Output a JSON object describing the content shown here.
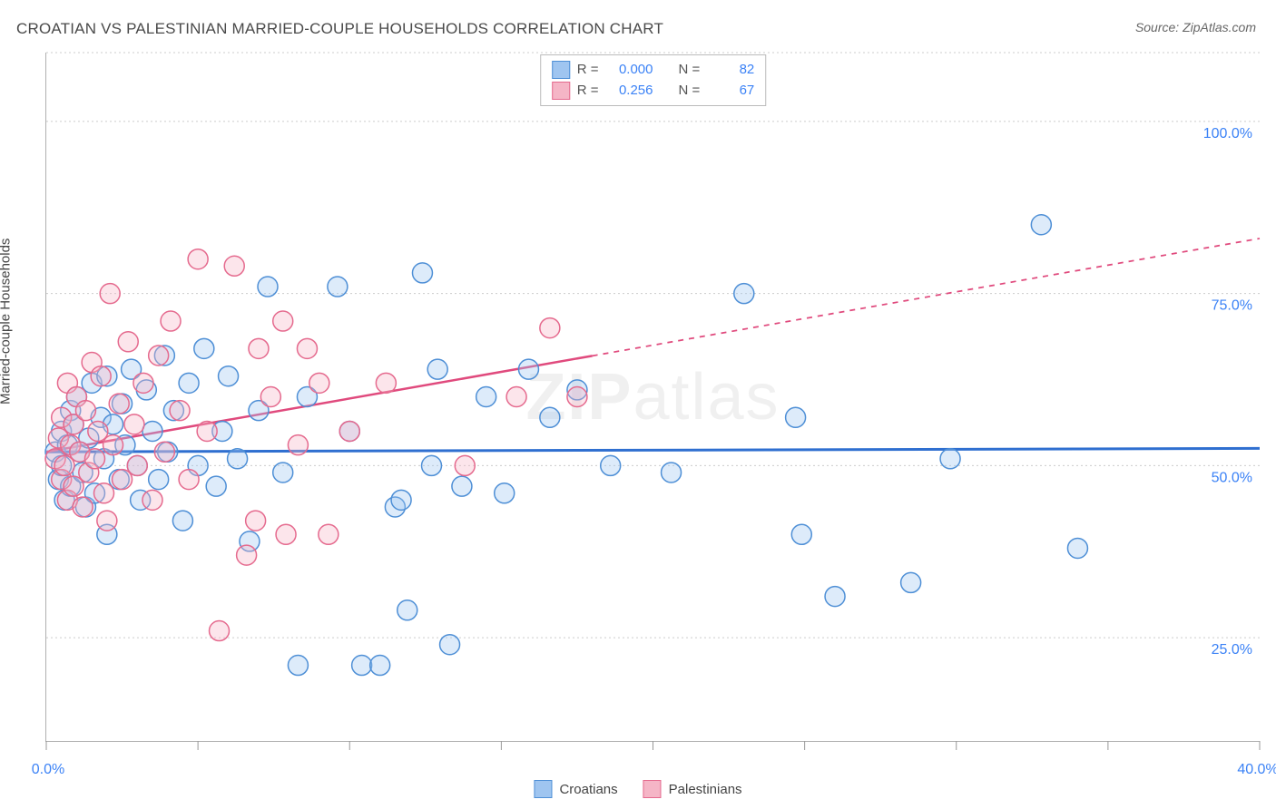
{
  "title": "CROATIAN VS PALESTINIAN MARRIED-COUPLE HOUSEHOLDS CORRELATION CHART",
  "source": "Source: ZipAtlas.com",
  "ylabel": "Married-couple Households",
  "watermark_prefix": "ZIP",
  "watermark_suffix": "atlas",
  "chart": {
    "type": "scatter",
    "background_color": "#ffffff",
    "grid_color": "#cccccc",
    "grid_dash": "2,3",
    "axis_color": "#b0b0b0",
    "tick_label_color": "#3b82f6",
    "label_color": "#444444",
    "label_fontsize": 15,
    "tick_fontsize": 16,
    "title_fontsize": 17,
    "title_color": "#4a4a4a",
    "marker_radius": 11,
    "marker_stroke_width": 1.5,
    "marker_fill_opacity": 0.35,
    "xlim": [
      0,
      40
    ],
    "ylim": [
      10,
      110
    ],
    "xticks": [
      0,
      5,
      10,
      15,
      20,
      25,
      30,
      35,
      40
    ],
    "xtick_labels_shown": {
      "0": "0.0%",
      "40": "40.0%"
    },
    "yticks": [
      25,
      50,
      75,
      100
    ],
    "ytick_labels": {
      "25": "25.0%",
      "50": "50.0%",
      "75": "75.0%",
      "100": "100.0%"
    },
    "ygrid_extra": [
      110
    ]
  },
  "series": {
    "croatians": {
      "label": "Croatians",
      "fill": "#9fc5f0",
      "stroke": "#4e8fd6",
      "R": "0.000",
      "N": "82",
      "trend": {
        "color": "#2f6fd0",
        "width": 3,
        "solid_to_x": 40,
        "y_at_x0": 52,
        "y_at_x40": 52.5
      },
      "points": [
        [
          0.3,
          52
        ],
        [
          0.4,
          48
        ],
        [
          0.5,
          55
        ],
        [
          0.5,
          50
        ],
        [
          0.6,
          45
        ],
        [
          0.7,
          53
        ],
        [
          0.8,
          58
        ],
        [
          0.8,
          47
        ],
        [
          0.9,
          56
        ],
        [
          1.0,
          60
        ],
        [
          1.1,
          52
        ],
        [
          1.2,
          49
        ],
        [
          1.3,
          44
        ],
        [
          1.4,
          54
        ],
        [
          1.5,
          62
        ],
        [
          1.6,
          46
        ],
        [
          1.8,
          57
        ],
        [
          1.9,
          51
        ],
        [
          2.0,
          63
        ],
        [
          2.0,
          40
        ],
        [
          2.2,
          56
        ],
        [
          2.4,
          48
        ],
        [
          2.5,
          59
        ],
        [
          2.6,
          53
        ],
        [
          2.8,
          64
        ],
        [
          3.0,
          50
        ],
        [
          3.1,
          45
        ],
        [
          3.3,
          61
        ],
        [
          3.5,
          55
        ],
        [
          3.7,
          48
        ],
        [
          3.9,
          66
        ],
        [
          4.0,
          52
        ],
        [
          4.2,
          58
        ],
        [
          4.5,
          42
        ],
        [
          4.7,
          62
        ],
        [
          5.0,
          50
        ],
        [
          5.2,
          67
        ],
        [
          5.6,
          47
        ],
        [
          5.8,
          55
        ],
        [
          6.0,
          63
        ],
        [
          6.3,
          51
        ],
        [
          6.7,
          39
        ],
        [
          7.0,
          58
        ],
        [
          7.3,
          76
        ],
        [
          7.8,
          49
        ],
        [
          8.3,
          21
        ],
        [
          8.6,
          60
        ],
        [
          9.6,
          76
        ],
        [
          10.0,
          55
        ],
        [
          10.4,
          21
        ],
        [
          11.0,
          21
        ],
        [
          11.5,
          44
        ],
        [
          11.7,
          45
        ],
        [
          11.9,
          29
        ],
        [
          12.4,
          78
        ],
        [
          12.7,
          50
        ],
        [
          12.9,
          64
        ],
        [
          13.3,
          24
        ],
        [
          13.7,
          47
        ],
        [
          14.5,
          60
        ],
        [
          15.1,
          46
        ],
        [
          15.9,
          64
        ],
        [
          16.6,
          57
        ],
        [
          17.5,
          61
        ],
        [
          18.6,
          50
        ],
        [
          20.6,
          49
        ],
        [
          23.0,
          75
        ],
        [
          24.7,
          57
        ],
        [
          24.9,
          40
        ],
        [
          26.0,
          31
        ],
        [
          28.5,
          33
        ],
        [
          29.8,
          51
        ],
        [
          32.8,
          85
        ],
        [
          34.0,
          38
        ]
      ]
    },
    "palestinians": {
      "label": "Palestinians",
      "fill": "#f5b5c6",
      "stroke": "#e56a8e",
      "R": "0.256",
      "N": "67",
      "trend": {
        "color": "#e04a7d",
        "width": 2.5,
        "solid_to_x": 18,
        "y_at_x0": 52,
        "y_at_x40": 83
      },
      "points": [
        [
          0.3,
          51
        ],
        [
          0.4,
          54
        ],
        [
          0.5,
          57
        ],
        [
          0.5,
          48
        ],
        [
          0.6,
          50
        ],
        [
          0.7,
          45
        ],
        [
          0.7,
          62
        ],
        [
          0.8,
          53
        ],
        [
          0.9,
          56
        ],
        [
          0.9,
          47
        ],
        [
          1.0,
          60
        ],
        [
          1.1,
          52
        ],
        [
          1.2,
          44
        ],
        [
          1.3,
          58
        ],
        [
          1.4,
          49
        ],
        [
          1.5,
          65
        ],
        [
          1.6,
          51
        ],
        [
          1.7,
          55
        ],
        [
          1.8,
          63
        ],
        [
          1.9,
          46
        ],
        [
          2.0,
          42
        ],
        [
          2.1,
          75
        ],
        [
          2.2,
          53
        ],
        [
          2.4,
          59
        ],
        [
          2.5,
          48
        ],
        [
          2.7,
          68
        ],
        [
          2.9,
          56
        ],
        [
          3.0,
          50
        ],
        [
          3.2,
          62
        ],
        [
          3.5,
          45
        ],
        [
          3.7,
          66
        ],
        [
          3.9,
          52
        ],
        [
          4.1,
          71
        ],
        [
          4.4,
          58
        ],
        [
          4.7,
          48
        ],
        [
          5.0,
          80
        ],
        [
          5.3,
          55
        ],
        [
          5.7,
          26
        ],
        [
          6.2,
          79
        ],
        [
          6.6,
          37
        ],
        [
          6.9,
          42
        ],
        [
          7.0,
          67
        ],
        [
          7.4,
          60
        ],
        [
          7.8,
          71
        ],
        [
          7.9,
          40
        ],
        [
          8.3,
          53
        ],
        [
          8.6,
          67
        ],
        [
          9.0,
          62
        ],
        [
          9.3,
          40
        ],
        [
          10.0,
          55
        ],
        [
          11.2,
          62
        ],
        [
          13.8,
          50
        ],
        [
          15.5,
          60
        ],
        [
          16.6,
          70
        ],
        [
          17.5,
          60
        ]
      ]
    }
  },
  "legend_top": {
    "label_R": "R =",
    "label_N": "N ="
  },
  "legend_bottom_order": [
    "croatians",
    "palestinians"
  ]
}
